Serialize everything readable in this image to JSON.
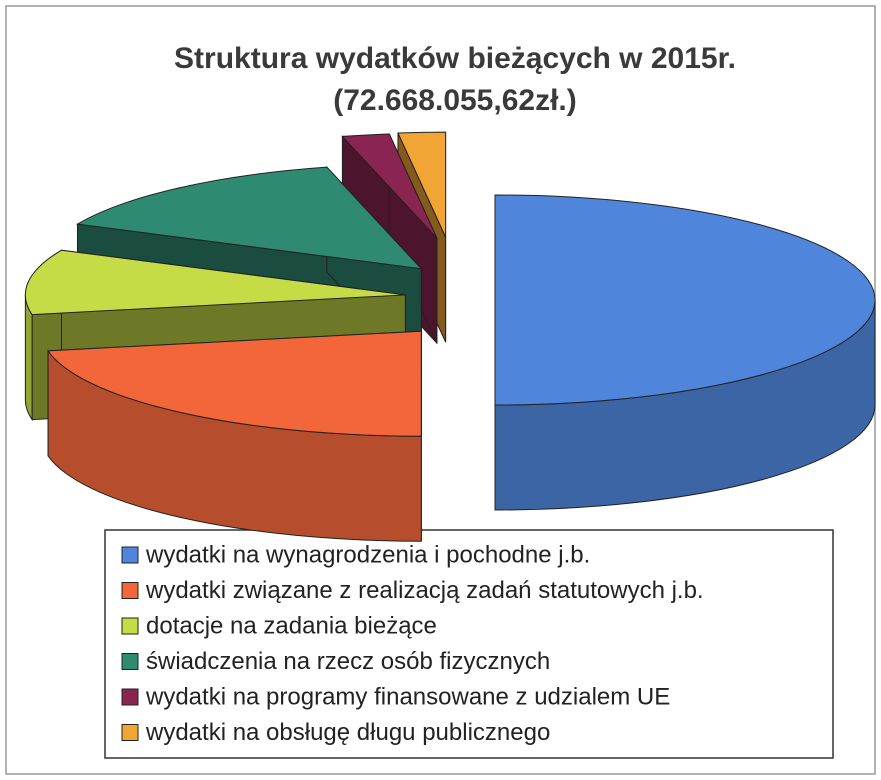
{
  "chart_data": {
    "type": "pie",
    "title": "Struktura wydatków bieżących w 2015r.",
    "subtitle": "(72.668.055,62zł.)",
    "categories": [
      "wydatki na wynagrodzenia i pochodne j.b.",
      "wydatki związane z realizacją zadań statutowych j.b.",
      "dotacje na zadania bieżące",
      "świadczenia na rzecz osób fizycznych",
      "wydatki na programy finansowane z udzialem UE",
      "wydatki na obsługę długu publicznego"
    ],
    "values": [
      50,
      22,
      10,
      14,
      2,
      2
    ],
    "colors": [
      "#4f86dc",
      "#f2663a",
      "#c6dc46",
      "#2f8a72",
      "#8a2552",
      "#f0a535"
    ],
    "legend": "bottom"
  }
}
